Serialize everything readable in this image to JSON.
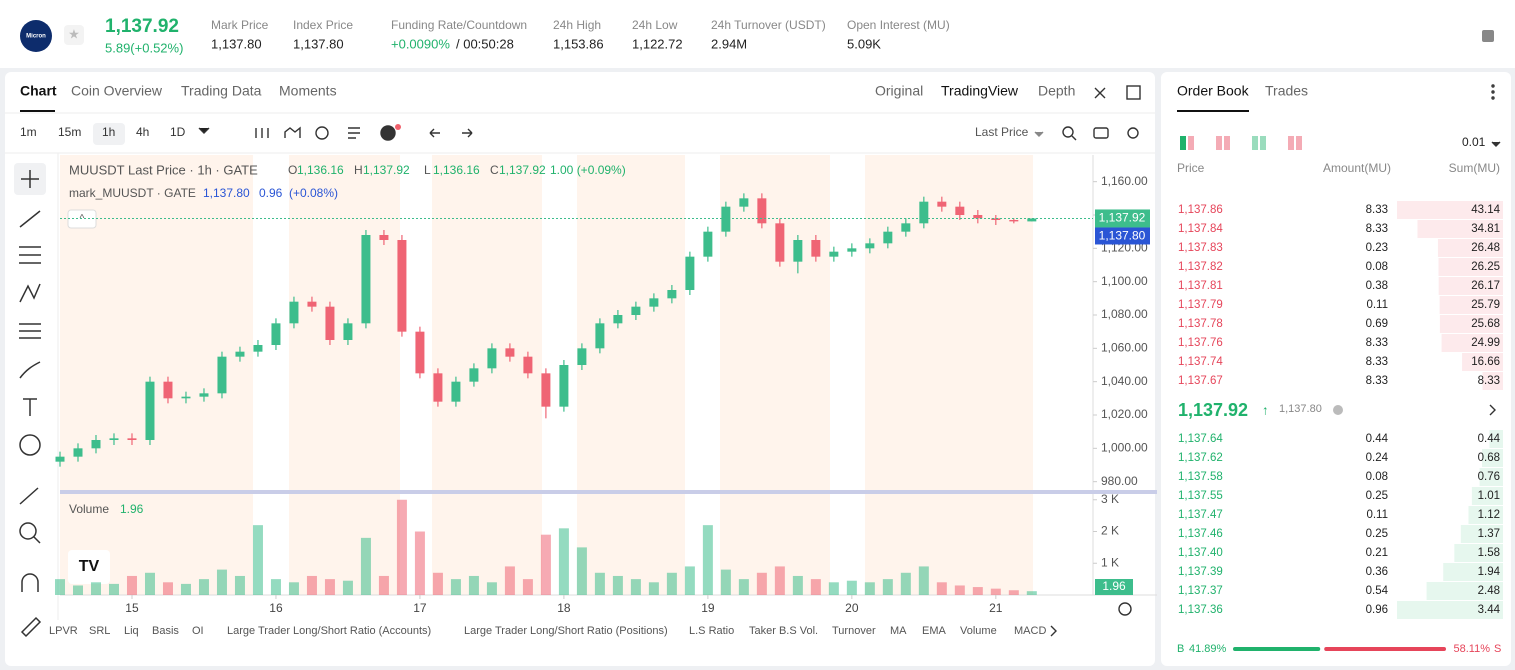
{
  "header": {
    "logo": "Micron",
    "price": "1,137.92",
    "change": "5.89(+0.52%)",
    "stats": [
      {
        "label": "Mark Price",
        "value": "1,137.80"
      },
      {
        "label": "Index Price",
        "value": "1,137.80"
      },
      {
        "label": "Funding Rate/Countdown",
        "value": "+0.0090%",
        "countdown": "/ 00:50:28"
      },
      {
        "label": "24h High",
        "value": "1,153.86"
      },
      {
        "label": "24h Low",
        "value": "1,122.72"
      },
      {
        "label": "24h Turnover (USDT)",
        "value": "2.94M"
      },
      {
        "label": "Open Interest (MU)",
        "value": "5.09K"
      }
    ]
  },
  "tabs": [
    "Chart",
    "Coin Overview",
    "Trading Data",
    "Moments"
  ],
  "views": [
    "Original",
    "TradingView",
    "Depth"
  ],
  "intervals": [
    "1m",
    "15m",
    "1h",
    "4h",
    "1D"
  ],
  "price_source": "Last Price",
  "indicators": [
    "LPVR",
    "SRL",
    "Liq",
    "Basis",
    "OI",
    "Large Trader Long/Short Ratio (Accounts)",
    "Large Trader Long/Short Ratio (Positions)",
    "L.S Ratio",
    "Taker B.S Vol.",
    "Turnover",
    "MA",
    "EMA",
    "Volume",
    "MACD"
  ],
  "chart_data": {
    "type": "candlestick",
    "title": "MUUSDT Last Price · 1h · GATE",
    "ohlc_legend": [
      {
        "label": "O",
        "value": "1,136.16"
      },
      {
        "label": "H",
        "value": "1,137.92"
      },
      {
        "label": "L",
        "value": "1,136.16"
      },
      {
        "label": "C",
        "value": "1,137.92"
      }
    ],
    "legend_change": "1.00 (+0.09%)",
    "mark_line": {
      "name": "mark_MUUSDT · GATE",
      "value": "1,137.80",
      "change": "0.96",
      "change_pct": "(+0.08%)"
    },
    "last_price_label": "1,137.92",
    "mark_price_label": "1,137.80",
    "volume_title": "Volume",
    "volume_value": "1.96",
    "up_color": "#3dbd8c",
    "down_color": "#ef6474",
    "open": [
      992,
      995,
      1000,
      1005,
      1006,
      1005,
      1040,
      1030,
      1031,
      1033,
      1055,
      1058,
      1062,
      1075,
      1088,
      1085,
      1065,
      1075,
      1128,
      1125,
      1070,
      1045,
      1028,
      1040,
      1048,
      1060,
      1055,
      1045,
      1025,
      1050,
      1060,
      1075,
      1080,
      1085,
      1090,
      1095,
      1115,
      1130,
      1145,
      1150,
      1135,
      1112,
      1125,
      1115,
      1118,
      1120,
      1123,
      1130,
      1135,
      1148,
      1145,
      1140,
      1138,
      1137,
      1136.16
    ],
    "high": [
      998,
      1003,
      1008,
      1009,
      1009,
      1043,
      1043,
      1034,
      1036,
      1058,
      1061,
      1065,
      1078,
      1091,
      1091,
      1088,
      1078,
      1131,
      1131,
      1128,
      1073,
      1048,
      1043,
      1051,
      1063,
      1063,
      1058,
      1048,
      1053,
      1063,
      1078,
      1083,
      1088,
      1093,
      1098,
      1118,
      1133,
      1148,
      1153,
      1153,
      1138,
      1128,
      1128,
      1121,
      1123,
      1126,
      1133,
      1138,
      1151,
      1151,
      1148,
      1143,
      1140,
      1138,
      1137.92
    ],
    "low": [
      989,
      992,
      997,
      1002,
      1002,
      1002,
      1027,
      1027,
      1028,
      1030,
      1052,
      1055,
      1059,
      1072,
      1082,
      1062,
      1062,
      1072,
      1122,
      1067,
      1042,
      1025,
      1025,
      1037,
      1045,
      1052,
      1042,
      1018,
      1022,
      1047,
      1057,
      1072,
      1077,
      1082,
      1087,
      1092,
      1112,
      1127,
      1142,
      1132,
      1109,
      1105,
      1112,
      1112,
      1115,
      1117,
      1120,
      1127,
      1132,
      1142,
      1137,
      1135,
      1134,
      1135,
      1136.16
    ],
    "close": [
      995,
      1000,
      1005,
      1006,
      1005,
      1040,
      1030,
      1031,
      1033,
      1055,
      1058,
      1062,
      1075,
      1088,
      1085,
      1065,
      1075,
      1128,
      1125,
      1070,
      1045,
      1028,
      1040,
      1048,
      1060,
      1055,
      1045,
      1025,
      1050,
      1060,
      1075,
      1080,
      1085,
      1090,
      1095,
      1115,
      1130,
      1145,
      1150,
      1135,
      1112,
      1125,
      1115,
      1118,
      1120,
      1123,
      1130,
      1135,
      1148,
      1145,
      1140,
      1138,
      1137,
      1136.16,
      1137.92
    ],
    "volume": [
      500,
      300,
      400,
      350,
      600,
      700,
      400,
      350,
      500,
      800,
      600,
      2200,
      500,
      400,
      600,
      500,
      450,
      1800,
      600,
      3000,
      2000,
      700,
      500,
      600,
      400,
      900,
      500,
      1900,
      2100,
      1500,
      700,
      600,
      500,
      400,
      700,
      900,
      2200,
      800,
      500,
      700,
      900,
      600,
      500,
      400,
      450,
      400,
      500,
      700,
      900,
      400,
      300,
      250,
      200,
      150,
      120
    ],
    "xlim": [
      0,
      57.4
    ],
    "xticks": [
      {
        "value": 4,
        "label": "15"
      },
      {
        "value": 12,
        "label": "16"
      },
      {
        "value": 20,
        "label": "17"
      },
      {
        "value": 28,
        "label": "18"
      },
      {
        "value": 36,
        "label": "19"
      },
      {
        "value": 44,
        "label": "20"
      },
      {
        "value": 52,
        "label": "21"
      }
    ],
    "ylim": [
      975,
      1176
    ],
    "yticks": [
      {
        "value": 980,
        "label": "980.00"
      },
      {
        "value": 1000,
        "label": "1,000.00"
      },
      {
        "value": 1020,
        "label": "1,020.00"
      },
      {
        "value": 1040,
        "label": "1,040.00"
      },
      {
        "value": 1060,
        "label": "1,060.00"
      },
      {
        "value": 1080,
        "label": "1,080.00"
      },
      {
        "value": 1100,
        "label": "1,100.00"
      },
      {
        "value": 1120,
        "label": "1,120.00"
      },
      {
        "value": 1140,
        "label": "1,140.00"
      },
      {
        "value": 1160,
        "label": "1,160.00"
      }
    ],
    "y2lim": [
      0,
      3150
    ],
    "y2ticks": [
      {
        "value": 1000,
        "label": "1 K"
      },
      {
        "value": 2000,
        "label": "2 K"
      },
      {
        "value": 3000,
        "label": "3 K"
      }
    ]
  },
  "order_book": {
    "tabs": [
      "Order Book",
      "Trades"
    ],
    "precision": "0.01",
    "headers": [
      "Price",
      "Amount(MU)",
      "Sum(MU)"
    ],
    "asks": [
      {
        "price": "1,137.86",
        "amount": 8.33,
        "sum": 43.14
      },
      {
        "price": "1,137.84",
        "amount": 8.33,
        "sum": 34.81
      },
      {
        "price": "1,137.83",
        "amount": 0.23,
        "sum": 26.48
      },
      {
        "price": "1,137.82",
        "amount": 0.08,
        "sum": 26.25
      },
      {
        "price": "1,137.81",
        "amount": 0.38,
        "sum": 26.17
      },
      {
        "price": "1,137.79",
        "amount": 0.11,
        "sum": 25.79
      },
      {
        "price": "1,137.78",
        "amount": 0.69,
        "sum": 25.68
      },
      {
        "price": "1,137.76",
        "amount": 8.33,
        "sum": 24.99
      },
      {
        "price": "1,137.74",
        "amount": 8.33,
        "sum": 16.66
      },
      {
        "price": "1,137.67",
        "amount": 8.33,
        "sum": 8.33
      }
    ],
    "last_price": "1,137.92",
    "mark_price": "1,137.80",
    "bids": [
      {
        "price": "1,137.64",
        "amount": 0.44,
        "sum": 0.44
      },
      {
        "price": "1,137.62",
        "amount": 0.24,
        "sum": 0.68
      },
      {
        "price": "1,137.58",
        "amount": 0.08,
        "sum": 0.76
      },
      {
        "price": "1,137.55",
        "amount": 0.25,
        "sum": 1.01
      },
      {
        "price": "1,137.47",
        "amount": 0.11,
        "sum": 1.12
      },
      {
        "price": "1,137.46",
        "amount": 0.25,
        "sum": 1.37
      },
      {
        "price": "1,137.40",
        "amount": 0.21,
        "sum": 1.58
      },
      {
        "price": "1,137.39",
        "amount": 0.36,
        "sum": 1.94
      },
      {
        "price": "1,137.37",
        "amount": 0.54,
        "sum": 2.48
      },
      {
        "price": "1,137.36",
        "amount": 0.96,
        "sum": 3.44
      }
    ],
    "ratio": {
      "labels": [
        "B",
        "S"
      ],
      "values": [
        41.89,
        58.11
      ],
      "value_labels": [
        "41.89%",
        "58.11%"
      ]
    }
  }
}
